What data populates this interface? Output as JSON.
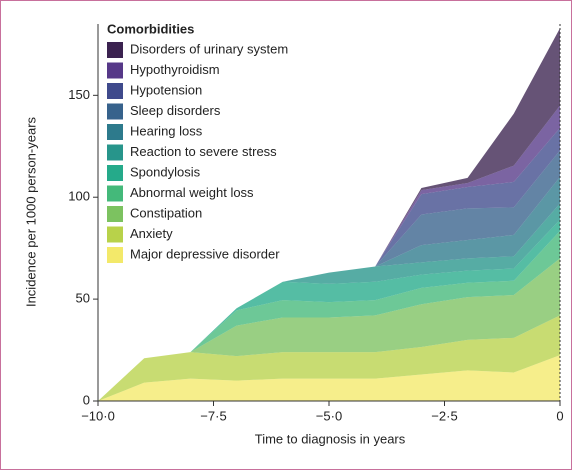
{
  "chart_data": {
    "type": "stacked_area",
    "x_label": "Time to diagnosis in years",
    "y_label": "Incidence per 1000 person-years",
    "legend_title": "Comorbidities",
    "x": [
      -10,
      -9,
      -8,
      -7,
      -6,
      -5,
      -4,
      -3,
      -2,
      -1,
      0
    ],
    "xlim": [
      -10,
      0
    ],
    "xticks": [
      {
        "value": -10,
        "label": "−10·0"
      },
      {
        "value": -7.5,
        "label": "−7·5"
      },
      {
        "value": -5,
        "label": "−5·0"
      },
      {
        "value": -2.5,
        "label": "−2·5"
      },
      0
    ],
    "ylim": [
      0,
      185
    ],
    "yticks": [
      0,
      50,
      100,
      150
    ],
    "series": [
      {
        "name": "Major depressive disorder",
        "color": "#f3e96a",
        "values": [
          0,
          9,
          11,
          10,
          11,
          11,
          11,
          13,
          15,
          14,
          22.5
        ]
      },
      {
        "name": "Anxiety",
        "color": "#b8d24a",
        "values": [
          0,
          12,
          13,
          12,
          13,
          13,
          13,
          13.5,
          15,
          17,
          19.5
        ]
      },
      {
        "name": "Constipation",
        "color": "#7cc260",
        "values": [
          0,
          0,
          0,
          15,
          17,
          17,
          18,
          21,
          21,
          21,
          28
        ]
      },
      {
        "name": "Abnormal weight loss",
        "color": "#44b97a",
        "values": [
          0,
          0,
          0,
          7.5,
          8.5,
          7.5,
          7.5,
          8,
          7,
          7,
          13.5
        ]
      },
      {
        "name": "Spondylosis",
        "color": "#25aa8a",
        "values": [
          0,
          0,
          0,
          1,
          9,
          9,
          9,
          6.5,
          6,
          6,
          5.5
        ]
      },
      {
        "name": "Reaction to severe stress",
        "color": "#27958b",
        "values": [
          0,
          0,
          0,
          0,
          0,
          5.5,
          7.5,
          6,
          6,
          6,
          8
        ]
      },
      {
        "name": "Hearing loss",
        "color": "#2d7a8c",
        "values": [
          0,
          0,
          0,
          0,
          0,
          0,
          0,
          8.5,
          9,
          10.5,
          13
        ]
      },
      {
        "name": "Sleep disorders",
        "color": "#37628c",
        "values": [
          0,
          0,
          0,
          0,
          0,
          0,
          0,
          15,
          15.5,
          13.5,
          13
        ]
      },
      {
        "name": "Hypotension",
        "color": "#3f4a8c",
        "values": [
          0,
          0,
          0,
          0,
          0,
          0,
          0,
          10,
          10.5,
          12.5,
          11
        ]
      },
      {
        "name": "Hypothyroidism",
        "color": "#563888",
        "values": [
          0,
          0,
          0,
          0,
          0,
          0,
          0,
          2,
          2,
          8,
          11
        ]
      },
      {
        "name": "Disorders of urinary system",
        "color": "#3b2250",
        "values": [
          0,
          0,
          0,
          0,
          0,
          0,
          0,
          1,
          2.5,
          25.5,
          38
        ]
      }
    ]
  }
}
